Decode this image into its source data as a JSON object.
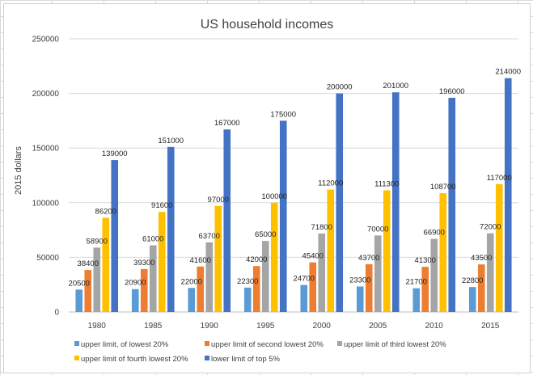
{
  "chart_data": {
    "type": "bar",
    "title": "US household incomes",
    "ylabel": "2015 dollars",
    "xlabel": "",
    "categories": [
      "1980",
      "1985",
      "1990",
      "1995",
      "2000",
      "2005",
      "2010",
      "2015"
    ],
    "ylim": [
      0,
      250000
    ],
    "yticks": [
      "0",
      "50000",
      "100000",
      "150000",
      "200000",
      "250000"
    ],
    "grid": true,
    "legend_position": "bottom",
    "series": [
      {
        "name": "upper limit, of lowest 20%",
        "color": "#5b9bd5",
        "values": [
          20500,
          20900,
          22000,
          22300,
          24700,
          23300,
          21700,
          22800
        ]
      },
      {
        "name": "upper limit of second lowest 20%",
        "color": "#ed7d31",
        "values": [
          38400,
          39300,
          41600,
          42000,
          45400,
          43700,
          41300,
          43500
        ]
      },
      {
        "name": "upper limit of third lowest 20%",
        "color": "#a5a5a5",
        "values": [
          58900,
          61000,
          63700,
          65000,
          71800,
          70000,
          66900,
          72000
        ]
      },
      {
        "name": "upper limit of fourth lowest 20%",
        "color": "#ffc000",
        "values": [
          86200,
          91600,
          97000,
          100000,
          112000,
          111300,
          108700,
          117000
        ]
      },
      {
        "name": "lower limit of top 5%",
        "color": "#4472c4",
        "values": [
          139000,
          151000,
          167000,
          175000,
          200000,
          201000,
          196000,
          214000
        ]
      }
    ]
  }
}
